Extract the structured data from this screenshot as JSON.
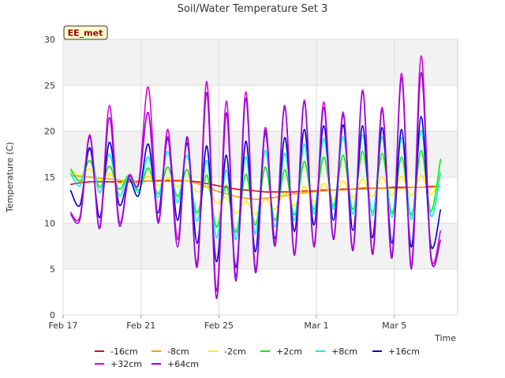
{
  "chart_data": {
    "type": "line",
    "title": "Soil/Water Temperature Set 3",
    "xlabel": "Time",
    "ylabel": "Temperature (C)",
    "site_badge": "EE_met",
    "ylim": [
      0,
      30
    ],
    "xlim": [
      "2024-02-17",
      "2024-03-08T06:00"
    ],
    "yticks": [
      0,
      5,
      10,
      15,
      20,
      25,
      30
    ],
    "xticks": [
      {
        "date": "2024-02-17",
        "label": "Feb 17"
      },
      {
        "date": "2024-02-21",
        "label": "Feb 21"
      },
      {
        "date": "2024-02-25",
        "label": "Feb 25"
      },
      {
        "date": "2024-03-01",
        "label": "Mar 1"
      },
      {
        "date": "2024-03-05",
        "label": "Mar 5"
      }
    ],
    "grid": true,
    "legend_position": "bottom",
    "series": [
      {
        "name": "-16cm",
        "color": "#dd0000",
        "start": "2024-02-17T09:00",
        "step_hours": 12,
        "values": [
          14.2,
          14.4,
          14.5,
          14.5,
          14.5,
          14.5,
          14.5,
          14.5,
          14.6,
          14.6,
          14.6,
          14.6,
          14.6,
          14.5,
          14.3,
          14.1,
          13.9,
          13.7,
          13.6,
          13.5,
          13.4,
          13.4,
          13.4,
          13.4,
          13.5,
          13.5,
          13.6,
          13.6,
          13.7,
          13.7,
          13.8,
          13.8,
          13.8,
          13.9,
          13.9,
          13.9,
          13.9,
          14.0,
          14.0
        ]
      },
      {
        "name": "-8cm",
        "color": "#ff9900",
        "start": "2024-02-17T09:00",
        "step_hours": 12,
        "values": [
          15.2,
          15.1,
          15.0,
          14.9,
          14.8,
          14.7,
          14.6,
          14.6,
          14.6,
          14.7,
          14.7,
          14.7,
          14.6,
          14.3,
          14.0,
          13.5,
          13.2,
          12.9,
          12.7,
          12.6,
          12.7,
          12.8,
          13.0,
          13.2,
          13.3,
          13.4,
          13.5,
          13.6,
          13.6,
          13.7,
          13.7,
          13.8,
          13.8,
          13.8,
          13.8,
          13.9,
          13.9,
          13.9,
          14.0
        ]
      },
      {
        "name": "-2cm",
        "color": "#ffee00",
        "start": "2024-02-17T09:00",
        "step_hours": 12,
        "values": [
          15.8,
          15.2,
          15.9,
          14.6,
          15.4,
          14.3,
          15.0,
          14.2,
          15.1,
          14.1,
          14.9,
          14.0,
          14.7,
          13.4,
          13.9,
          12.2,
          12.8,
          11.1,
          12.4,
          11.0,
          12.6,
          11.5,
          13.3,
          11.9,
          14.0,
          12.3,
          14.3,
          12.6,
          14.6,
          12.8,
          14.8,
          12.9,
          15.0,
          13.0,
          15.1,
          13.0,
          15.2,
          13.1,
          15.3
        ]
      },
      {
        "name": "+2cm",
        "color": "#00ee00",
        "start": "2024-02-17T09:00",
        "step_hours": 12,
        "values": [
          15.9,
          14.6,
          16.8,
          13.9,
          16.2,
          13.7,
          15.2,
          13.6,
          16.0,
          13.2,
          16.1,
          12.9,
          15.8,
          11.1,
          15.2,
          9.6,
          14.1,
          9.0,
          15.3,
          9.8,
          16.1,
          10.3,
          15.8,
          10.9,
          16.7,
          11.5,
          17.2,
          11.9,
          17.4,
          11.5,
          17.8,
          11.2,
          17.6,
          11.1,
          17.2,
          10.9,
          17.9,
          11.3,
          17.0
        ]
      },
      {
        "name": "+8cm",
        "color": "#00eeee",
        "start": "2024-02-17T09:00",
        "step_hours": 12,
        "values": [
          15.5,
          14.1,
          18.0,
          13.3,
          17.5,
          13.0,
          15.2,
          13.4,
          17.2,
          12.8,
          17.8,
          12.2,
          17.4,
          10.2,
          16.8,
          8.4,
          15.8,
          8.2,
          17.2,
          8.8,
          17.9,
          9.6,
          17.6,
          10.3,
          18.6,
          11.0,
          19.2,
          11.5,
          19.4,
          11.0,
          19.6,
          10.8,
          19.4,
          10.6,
          19.3,
          10.4,
          20.1,
          10.8,
          15.5
        ]
      },
      {
        "name": "+16cm",
        "color": "#0000cc",
        "start": "2024-02-17T09:00",
        "step_hours": 12,
        "values": [
          13.6,
          12.0,
          18.2,
          10.6,
          18.8,
          12.0,
          14.8,
          13.0,
          18.6,
          11.1,
          19.2,
          10.3,
          18.7,
          7.8,
          18.4,
          5.8,
          17.4,
          5.2,
          18.9,
          6.9,
          19.8,
          8.3,
          19.3,
          9.1,
          20.2,
          9.8,
          20.6,
          10.3,
          20.7,
          9.2,
          20.6,
          8.4,
          20.4,
          7.8,
          20.2,
          7.4,
          21.6,
          7.6,
          11.5
        ]
      },
      {
        "name": "+32cm",
        "color": "#dd00dd",
        "start": "2024-02-17T09:00",
        "step_hours": 12,
        "values": [
          11.2,
          10.8,
          19.6,
          9.5,
          22.8,
          10.2,
          15.2,
          14.4,
          24.8,
          10.3,
          20.2,
          8.2,
          19.2,
          5.6,
          25.4,
          2.6,
          23.3,
          4.2,
          24.3,
          5.0,
          20.4,
          7.8,
          22.6,
          6.8,
          23.4,
          7.7,
          23.2,
          8.4,
          22.1,
          7.2,
          24.5,
          6.8,
          22.6,
          6.5,
          26.3,
          5.4,
          28.2,
          6.6,
          9.2
        ]
      },
      {
        "name": "+64cm",
        "color": "#9900dd",
        "start": "2024-02-17T09:00",
        "step_hours": 12,
        "values": [
          11.0,
          10.5,
          19.4,
          9.4,
          21.5,
          9.8,
          15.0,
          14.2,
          22.0,
          10.0,
          19.4,
          7.4,
          19.4,
          5.2,
          24.2,
          1.8,
          22.0,
          3.7,
          23.6,
          4.6,
          20.1,
          7.5,
          22.8,
          6.5,
          23.2,
          7.4,
          22.6,
          8.2,
          21.8,
          7.0,
          24.3,
          6.6,
          22.3,
          6.2,
          25.8,
          5.0,
          26.4,
          6.3,
          8.2
        ]
      }
    ]
  }
}
